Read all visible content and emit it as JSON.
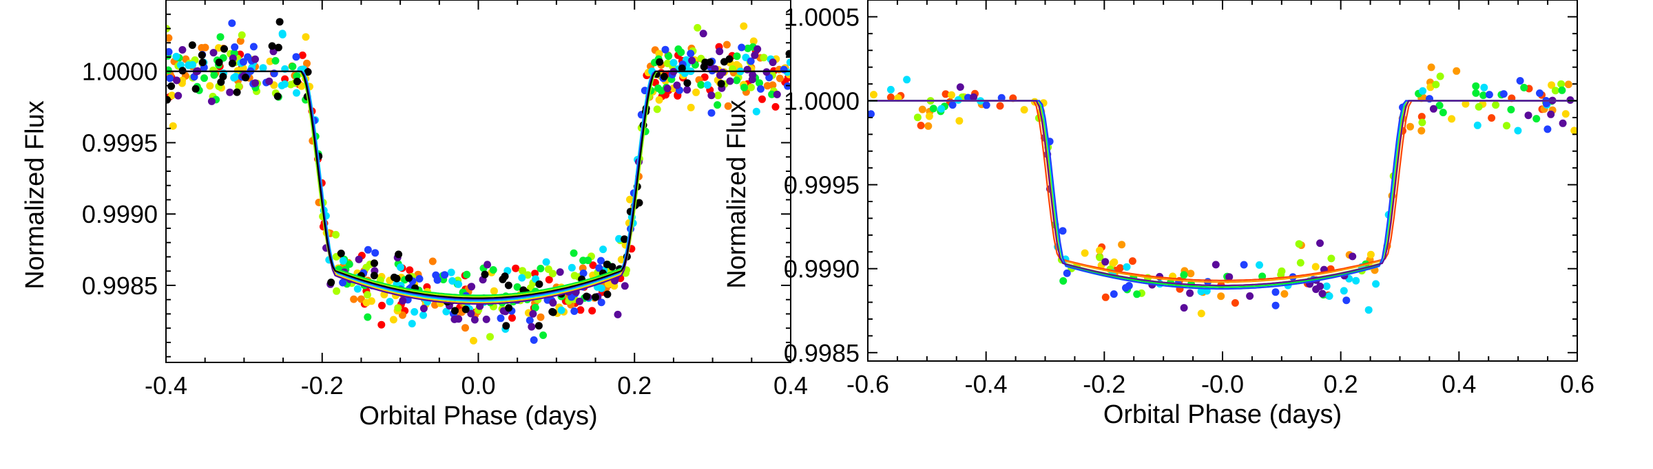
{
  "chart_data": [
    {
      "type": "scatter",
      "xlabel": "Orbital Phase (days)",
      "ylabel": "Normalized Flux",
      "xlim": [
        -0.4,
        0.4
      ],
      "ylim": [
        0.99796,
        1.0005
      ],
      "x_ticks": [
        "-0.4",
        "-0.2",
        "0.0",
        "0.2",
        "0.4"
      ],
      "x_tick_values": [
        -0.4,
        -0.2,
        0.0,
        0.2,
        0.4
      ],
      "y_ticks": [
        "0.9985",
        "0.9990",
        "0.9995",
        "1.0000"
      ],
      "y_tick_values": [
        0.9985,
        0.999,
        0.9995,
        1.0
      ],
      "grid": false,
      "series": [
        {
          "color": "#ff0000",
          "t14": 0.454,
          "depth": 0.0016,
          "annotation_outliers": [
            [
              0.0,
              0.99862
            ]
          ]
        },
        {
          "color": "#ff7f00",
          "t14": 0.456,
          "depth": 0.00159
        },
        {
          "color": "#ffd700",
          "t14": 0.452,
          "depth": 0.00162
        },
        {
          "color": "#aaff00",
          "t14": 0.458,
          "depth": 0.00158
        },
        {
          "color": "#00ee33",
          "t14": 0.456,
          "depth": 0.00157
        },
        {
          "color": "#00e0ff",
          "t14": 0.45,
          "depth": 0.00161
        },
        {
          "color": "#2040ff",
          "t14": 0.452,
          "depth": 0.0016
        },
        {
          "color": "#5a0a9a",
          "t14": 0.454,
          "depth": 0.00163
        },
        {
          "color": "#000000",
          "t14": 0.455,
          "depth": 0.00159
        }
      ],
      "noise": 0.00011,
      "points_per_series": 80
    },
    {
      "type": "scatter",
      "xlabel": "Orbital Phase (days)",
      "ylabel": "Normalized Flux",
      "xlim": [
        -0.6,
        0.6
      ],
      "ylim": [
        0.99845,
        1.0006
      ],
      "x_ticks": [
        "-0.6",
        "-0.4",
        "-0.2",
        "-0.0",
        "0.2",
        "0.4",
        "0.6"
      ],
      "x_tick_values": [
        -0.6,
        -0.4,
        -0.2,
        0.0,
        0.2,
        0.4,
        0.6
      ],
      "y_ticks": [
        "0.9985",
        "0.9990",
        "0.9995",
        "1.0000",
        "1.0005"
      ],
      "y_tick_values": [
        0.9985,
        0.999,
        0.9995,
        1.0,
        1.0005
      ],
      "grid": false,
      "series": [
        {
          "color": "#ff4400",
          "t14": 0.64,
          "depth": 0.00107
        },
        {
          "color": "#ff9900",
          "t14": 0.632,
          "depth": 0.00108
        },
        {
          "color": "#ffd700",
          "t14": 0.628,
          "depth": 0.0011
        },
        {
          "color": "#99ff00",
          "t14": 0.624,
          "depth": 0.0011
        },
        {
          "color": "#00ee33",
          "t14": 0.622,
          "depth": 0.00111
        },
        {
          "color": "#00e0ff",
          "t14": 0.62,
          "depth": 0.00112
        },
        {
          "color": "#2040ff",
          "t14": 0.618,
          "depth": 0.00112
        },
        {
          "color": "#5a0a9a",
          "t14": 0.63,
          "depth": 0.0011
        }
      ],
      "noise": 8.5e-05,
      "points_per_series": 28
    }
  ]
}
